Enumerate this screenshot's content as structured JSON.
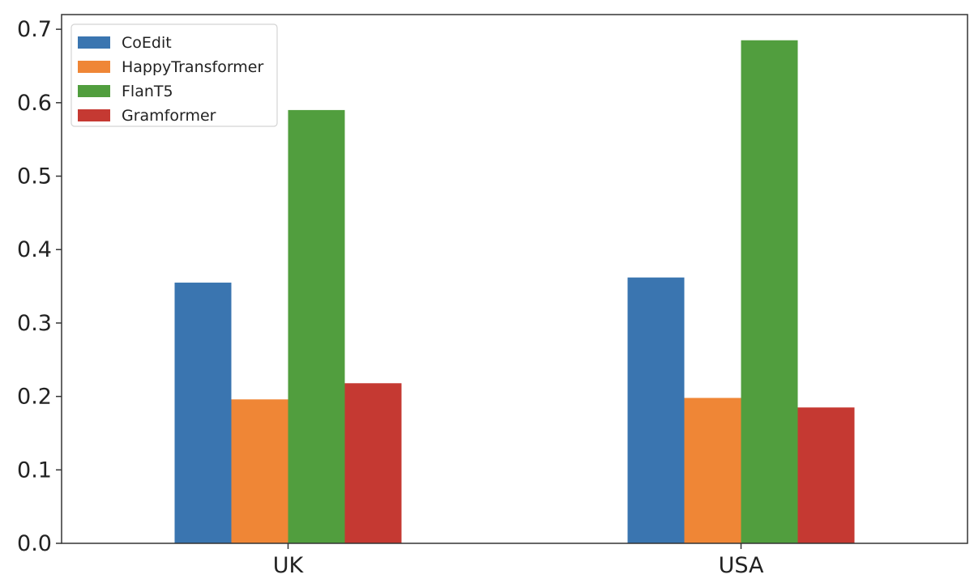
{
  "chart_data": {
    "type": "bar",
    "title": "",
    "xlabel": "",
    "ylabel": "",
    "categories": [
      "UK",
      "USA"
    ],
    "series": [
      {
        "name": "CoEdit",
        "values": [
          0.355,
          0.362
        ],
        "color": "#3a75b0"
      },
      {
        "name": "HappyTransformer",
        "values": [
          0.196,
          0.198
        ],
        "color": "#ef8636"
      },
      {
        "name": "FlanT5",
        "values": [
          0.59,
          0.685
        ],
        "color": "#519e3e"
      },
      {
        "name": "Gramformer",
        "values": [
          0.218,
          0.185
        ],
        "color": "#c53932"
      }
    ],
    "ylim": [
      0,
      0.72
    ],
    "yticks": [
      "0.0",
      "0.1",
      "0.2",
      "0.3",
      "0.4",
      "0.5",
      "0.6",
      "0.7"
    ],
    "grid": false,
    "legend_position": "top-left"
  }
}
